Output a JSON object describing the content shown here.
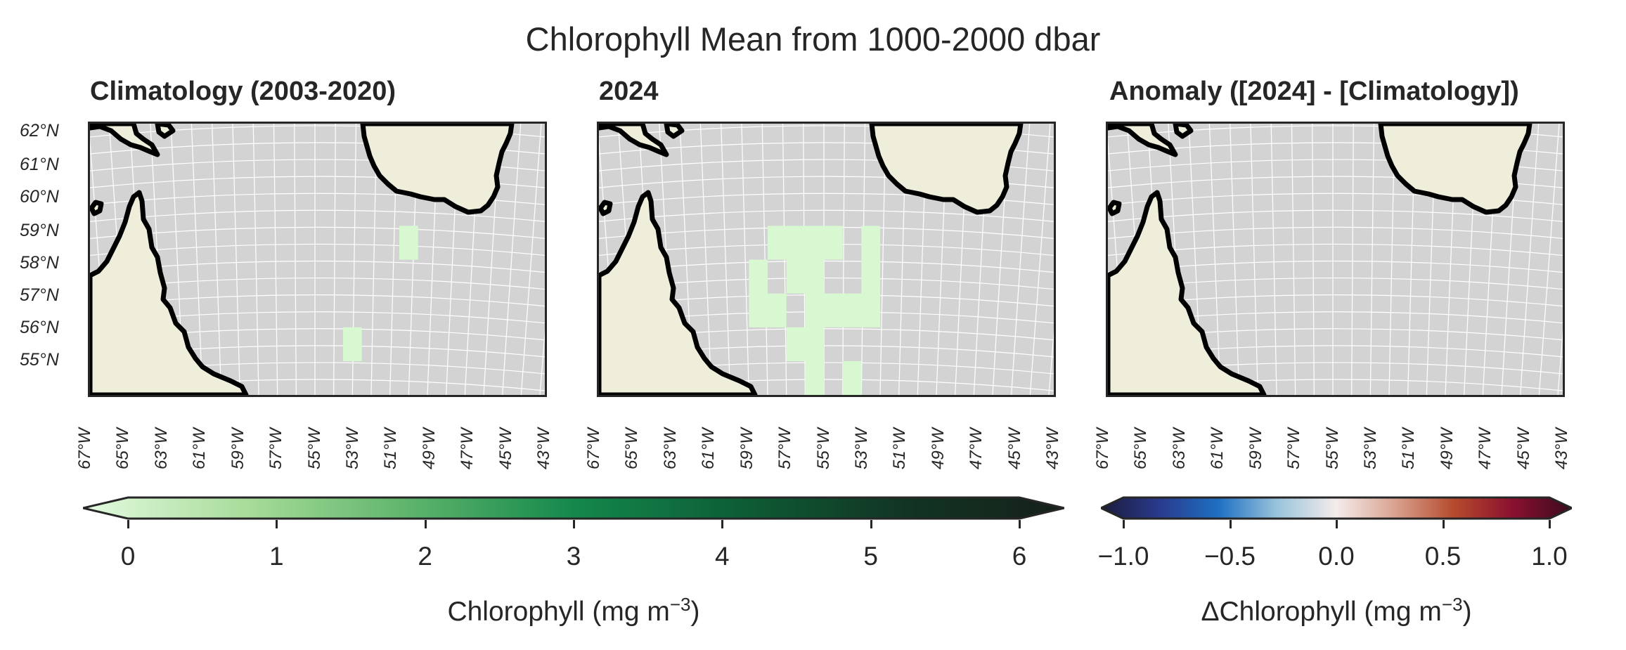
{
  "figure": {
    "title": "Chlorophyll Mean from 1000-2000 dbar"
  },
  "panels": [
    {
      "title": "Climatology (2003-2020)",
      "cells": [
        [
          49.5,
          59
        ],
        [
          52.5,
          56
        ]
      ]
    },
    {
      "title": "2024",
      "cells": [
        [
          57,
          59
        ],
        [
          56,
          59
        ],
        [
          55,
          59
        ],
        [
          54,
          59
        ],
        [
          52,
          59
        ],
        [
          58,
          58
        ],
        [
          56,
          58
        ],
        [
          55,
          58
        ],
        [
          52,
          58
        ],
        [
          58,
          57
        ],
        [
          57,
          57
        ],
        [
          55,
          57
        ],
        [
          54,
          57
        ],
        [
          53,
          57
        ],
        [
          52,
          57
        ],
        [
          56,
          56
        ],
        [
          55,
          56
        ],
        [
          55,
          55
        ],
        [
          53,
          55
        ]
      ]
    },
    {
      "title": "Anomaly ([2024] - [Climatology])",
      "cells": []
    }
  ],
  "lat_ticks": [
    "62°N",
    "61°N",
    "60°N",
    "59°N",
    "58°N",
    "57°N",
    "56°N",
    "55°N"
  ],
  "lon_ticks": [
    "67°W",
    "65°W",
    "63°W",
    "61°W",
    "59°W",
    "57°W",
    "55°W",
    "53°W",
    "51°W",
    "49°W",
    "47°W",
    "45°W",
    "43°W"
  ],
  "colorbar_chl": {
    "label_main": "Chlorophyll (mg m",
    "label_sup": "−3",
    "label_close": ")",
    "ticks": [
      "0",
      "1",
      "2",
      "3",
      "4",
      "5",
      "6"
    ],
    "range": [
      0,
      6
    ],
    "colors": [
      "#e3fbe0",
      "#a8dc9a",
      "#5db46b",
      "#14884c",
      "#0d5e36",
      "#123524",
      "#15201a"
    ]
  },
  "colorbar_anom": {
    "label_main": "ΔChlorophyll (mg m",
    "label_sup": "−3",
    "label_close": ")",
    "ticks": [
      "−1.0",
      "−0.5",
      "0.0",
      "0.5",
      "1.0"
    ],
    "range": [
      -1,
      1
    ],
    "colors": [
      "#1a1b3a",
      "#2a3a8e",
      "#1f70c2",
      "#9ac4dc",
      "#f4ecea",
      "#d9a290",
      "#b54a2c",
      "#8a1030",
      "#3a0b1e"
    ]
  },
  "map_colors": {
    "ocean": "#d3d3d3",
    "land": "#efeedb",
    "coast": "#000000",
    "grid": "#ffffff",
    "cell": "#d8f8d2"
  }
}
